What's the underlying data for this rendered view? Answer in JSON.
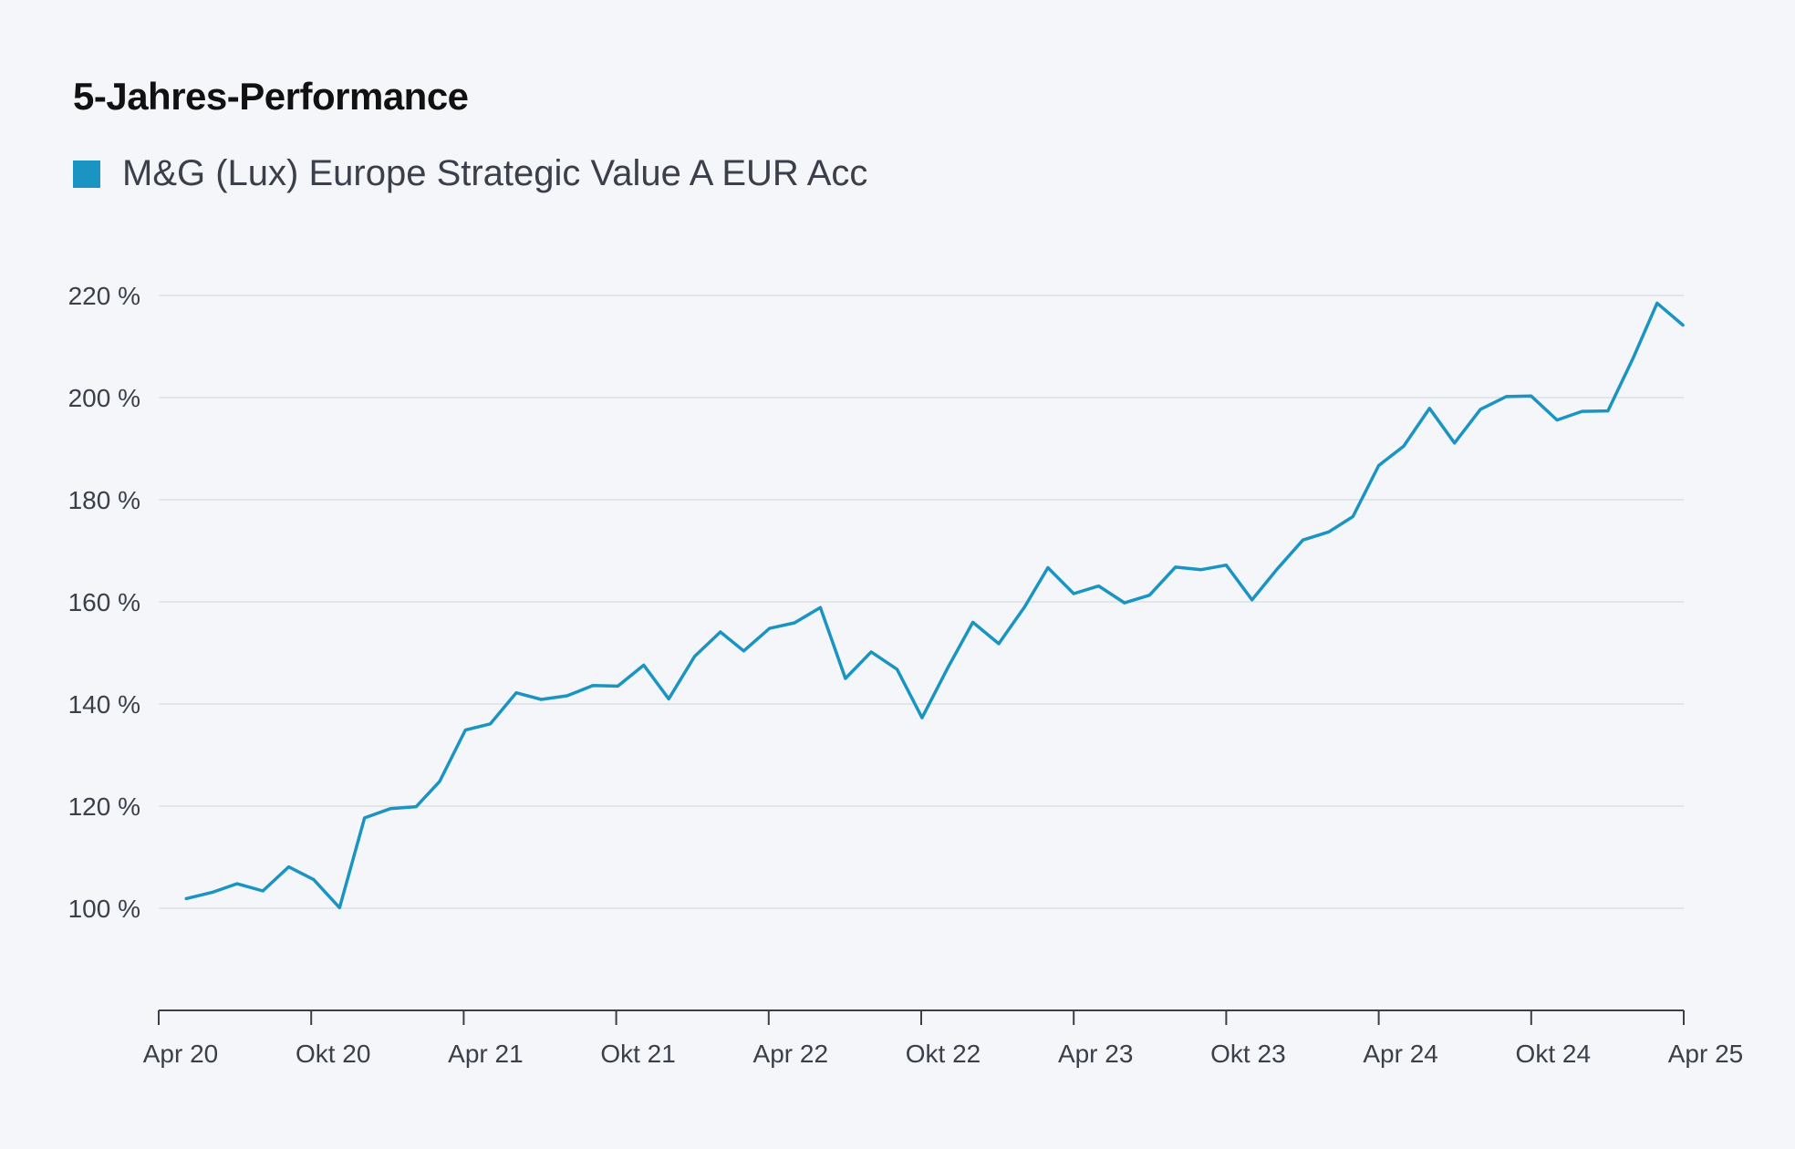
{
  "title": "5-Jahres-Performance",
  "legend": {
    "label": "M&G (Lux) Europe Strategic Value A EUR Acc",
    "color": "#1a94c2"
  },
  "colors": {
    "line": "#1a94c2",
    "grid": "#dcdfe5",
    "axis": "#3a3f4a",
    "text": "#3a3f4a"
  },
  "chart_data": {
    "type": "line",
    "title": "5-Jahres-Performance",
    "xlabel": "",
    "ylabel": "",
    "x_ticks": [
      "Apr 20",
      "Okt 20",
      "Apr 21",
      "Okt 21",
      "Apr 22",
      "Okt 22",
      "Apr 23",
      "Okt 23",
      "Apr 24",
      "Okt 24",
      "Apr 25"
    ],
    "y_ticks": [
      "100 %",
      "120 %",
      "140 %",
      "160 %",
      "180 %",
      "200 %",
      "220 %"
    ],
    "y_tick_values": [
      100,
      120,
      140,
      160,
      180,
      200,
      220
    ],
    "ylim": [
      80,
      225
    ],
    "xlim": [
      "2020-03-28",
      "2025-04-01"
    ],
    "grid": true,
    "legend_position": "top-left",
    "series": [
      {
        "name": "M&G (Lux) Europe Strategic Value A EUR Acc",
        "x": [
          "2020-04-30",
          "2020-05-31",
          "2020-06-30",
          "2020-07-31",
          "2020-08-31",
          "2020-09-30",
          "2020-10-31",
          "2020-11-30",
          "2020-12-31",
          "2021-01-31",
          "2021-02-28",
          "2021-03-31",
          "2021-04-30",
          "2021-05-31",
          "2021-06-30",
          "2021-07-31",
          "2021-08-31",
          "2021-09-30",
          "2021-10-31",
          "2021-11-30",
          "2021-12-31",
          "2022-01-31",
          "2022-02-28",
          "2022-03-31",
          "2022-04-30",
          "2022-05-31",
          "2022-06-30",
          "2022-07-31",
          "2022-08-31",
          "2022-09-30",
          "2022-10-31",
          "2022-11-30",
          "2022-12-31",
          "2023-01-31",
          "2023-02-28",
          "2023-03-31",
          "2023-04-30",
          "2023-05-31",
          "2023-06-30",
          "2023-07-31",
          "2023-08-31",
          "2023-09-30",
          "2023-10-31",
          "2023-11-30",
          "2023-12-31",
          "2024-01-31",
          "2024-02-29",
          "2024-03-31",
          "2024-04-30",
          "2024-05-31",
          "2024-06-30",
          "2024-07-31",
          "2024-08-31",
          "2024-09-30",
          "2024-10-31",
          "2024-11-30",
          "2024-12-31",
          "2025-01-31",
          "2025-02-28",
          "2025-03-31"
        ],
        "values": [
          101.9,
          103.1,
          104.8,
          103.4,
          108.1,
          105.6,
          100.1,
          117.7,
          119.5,
          119.9,
          124.8,
          134.9,
          136.1,
          142.2,
          140.9,
          141.6,
          143.6,
          143.5,
          147.6,
          141.0,
          149.3,
          154.1,
          150.4,
          154.8,
          155.9,
          158.9,
          145.0,
          150.2,
          146.8,
          137.3,
          147.1,
          156.0,
          151.8,
          159.0,
          166.7,
          161.6,
          163.1,
          159.8,
          161.3,
          166.8,
          166.3,
          167.2,
          160.4,
          166.4,
          172.1,
          173.7,
          176.7,
          186.7,
          190.5,
          197.9,
          191.1,
          197.7,
          200.2,
          200.3,
          195.6,
          197.3,
          197.4,
          208.0,
          218.5,
          214.2
        ]
      }
    ]
  }
}
